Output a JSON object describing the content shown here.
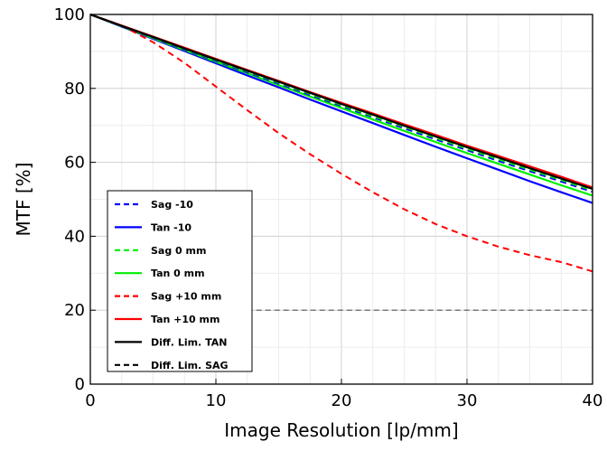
{
  "chart_data": {
    "type": "line",
    "xlabel": "Image Resolution [lp/mm]",
    "ylabel": "MTF [%]",
    "xlim": [
      0,
      40
    ],
    "ylim": [
      0,
      100
    ],
    "xticks": [
      0,
      10,
      20,
      30,
      40
    ],
    "yticks": [
      0,
      20,
      40,
      60,
      80,
      100
    ],
    "grid": true,
    "legend_position": "bottom-left",
    "x": [
      0,
      2.5,
      5,
      7.5,
      10,
      12.5,
      15,
      17.5,
      20,
      22.5,
      25,
      27.5,
      30,
      32.5,
      35,
      37.5,
      40
    ],
    "series": [
      {
        "name": "Sag -10",
        "color": "#0000ff",
        "dash": "dashed",
        "values": [
          100,
          96.8,
          93.7,
          90.5,
          87.4,
          84.3,
          81.3,
          78.2,
          75.2,
          72.2,
          69.2,
          66.2,
          63.3,
          60.4,
          57.6,
          54.8,
          52.0
        ]
      },
      {
        "name": "Tan -10",
        "color": "#0000ff",
        "dash": "solid",
        "values": [
          100,
          96.7,
          93.4,
          90.1,
          86.8,
          83.5,
          80.3,
          77.0,
          73.8,
          70.6,
          67.4,
          64.2,
          61.1,
          58.0,
          54.9,
          51.9,
          49.0
        ]
      },
      {
        "name": "Sag 0 mm",
        "color": "#00ee00",
        "dash": "dashed",
        "values": [
          100,
          96.9,
          93.8,
          90.7,
          87.6,
          84.6,
          81.6,
          78.5,
          75.5,
          72.5,
          69.6,
          66.6,
          63.7,
          60.8,
          58.0,
          55.2,
          52.4
        ]
      },
      {
        "name": "Tan 0 mm",
        "color": "#00ee00",
        "dash": "solid",
        "values": [
          100,
          96.8,
          93.6,
          90.4,
          87.2,
          84.1,
          80.9,
          77.8,
          74.7,
          71.6,
          68.5,
          65.5,
          62.5,
          59.6,
          56.7,
          53.8,
          51.0
        ]
      },
      {
        "name": "Sag +10 mm",
        "color": "#ff0000",
        "dash": "dashed",
        "values": [
          100,
          97.0,
          92.5,
          86.9,
          80.5,
          74.1,
          67.9,
          62.2,
          56.9,
          51.9,
          47.3,
          43.3,
          40.0,
          37.2,
          34.9,
          33.0,
          30.5
        ]
      },
      {
        "name": "Tan +10 mm",
        "color": "#ff0000",
        "dash": "solid",
        "values": [
          100,
          97.0,
          94.0,
          91.0,
          88.0,
          85.0,
          82.0,
          79.0,
          76.1,
          73.2,
          70.3,
          67.4,
          64.5,
          61.7,
          58.9,
          56.1,
          53.2
        ]
      },
      {
        "name": "Diff. Lim. TAN",
        "color": "#000000",
        "dash": "solid",
        "values": [
          100,
          96.9,
          93.9,
          90.8,
          87.8,
          84.8,
          81.8,
          78.8,
          75.8,
          72.9,
          69.9,
          67.0,
          64.1,
          61.3,
          58.4,
          55.6,
          52.8
        ]
      },
      {
        "name": "Diff. Lim. SAG",
        "color": "#000000",
        "dash": "dashed",
        "values": [
          100,
          96.9,
          93.9,
          90.8,
          87.8,
          84.8,
          81.8,
          78.8,
          75.8,
          72.9,
          69.9,
          67.0,
          64.1,
          61.3,
          58.4,
          55.6,
          52.8
        ]
      }
    ],
    "reference_line": {
      "y": 20,
      "x_from": 12.5,
      "x_to": 40,
      "color": "#555555",
      "dash": "dashed"
    }
  }
}
